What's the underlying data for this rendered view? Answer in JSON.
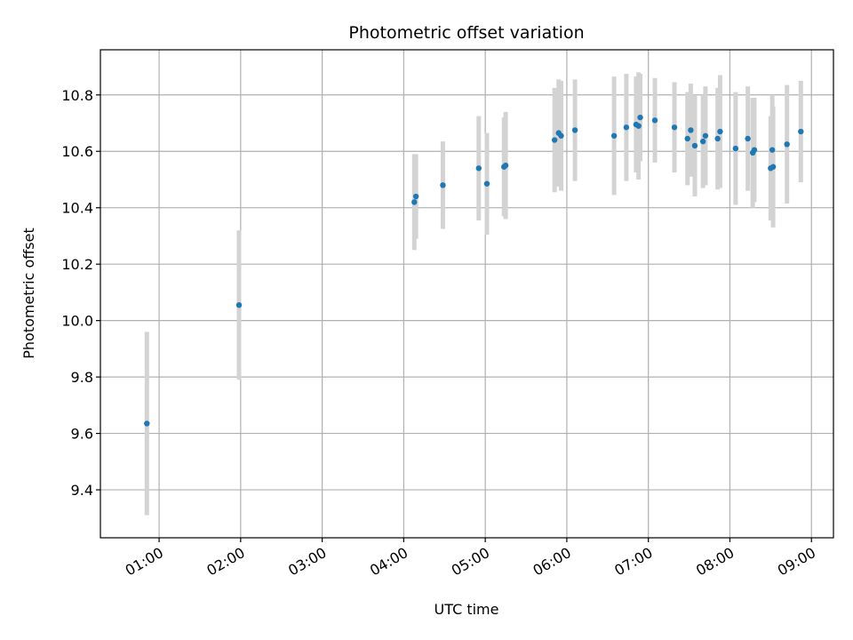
{
  "chart_data": {
    "type": "scatter",
    "title": "Photometric offset variation",
    "xlabel": "UTC time",
    "ylabel": "Photometric offset",
    "x_unit": "hours UTC",
    "xlim": [
      0.28,
      9.27
    ],
    "ylim": [
      9.23,
      10.96
    ],
    "grid": true,
    "x_ticks": [
      {
        "value": 1,
        "label": "01:00"
      },
      {
        "value": 2,
        "label": "02:00"
      },
      {
        "value": 3,
        "label": "03:00"
      },
      {
        "value": 4,
        "label": "04:00"
      },
      {
        "value": 5,
        "label": "05:00"
      },
      {
        "value": 6,
        "label": "06:00"
      },
      {
        "value": 7,
        "label": "07:00"
      },
      {
        "value": 8,
        "label": "08:00"
      },
      {
        "value": 9,
        "label": "09:00"
      }
    ],
    "y_ticks": [
      {
        "value": 9.4,
        "label": "9.4"
      },
      {
        "value": 9.6,
        "label": "9.6"
      },
      {
        "value": 9.8,
        "label": "9.8"
      },
      {
        "value": 10.0,
        "label": "10.0"
      },
      {
        "value": 10.2,
        "label": "10.2"
      },
      {
        "value": 10.4,
        "label": "10.4"
      },
      {
        "value": 10.6,
        "label": "10.6"
      },
      {
        "value": 10.8,
        "label": "10.8"
      }
    ],
    "colors": {
      "points": "#1f77b4",
      "errorbars": "#d3d3d3",
      "grid": "#b0b0b0"
    },
    "points": [
      {
        "x": 0.85,
        "y": 9.635,
        "err": 0.325
      },
      {
        "x": 1.98,
        "y": 10.055,
        "err": 0.265
      },
      {
        "x": 4.13,
        "y": 10.42,
        "err": 0.17
      },
      {
        "x": 4.15,
        "y": 10.44,
        "err": 0.15
      },
      {
        "x": 4.48,
        "y": 10.48,
        "err": 0.155
      },
      {
        "x": 4.92,
        "y": 10.54,
        "err": 0.185
      },
      {
        "x": 5.02,
        "y": 10.485,
        "err": 0.18
      },
      {
        "x": 5.23,
        "y": 10.545,
        "err": 0.175
      },
      {
        "x": 5.25,
        "y": 10.55,
        "err": 0.19
      },
      {
        "x": 5.85,
        "y": 10.64,
        "err": 0.185
      },
      {
        "x": 5.9,
        "y": 10.665,
        "err": 0.19
      },
      {
        "x": 5.93,
        "y": 10.655,
        "err": 0.195
      },
      {
        "x": 6.1,
        "y": 10.675,
        "err": 0.18
      },
      {
        "x": 6.58,
        "y": 10.655,
        "err": 0.21
      },
      {
        "x": 6.73,
        "y": 10.685,
        "err": 0.19
      },
      {
        "x": 6.85,
        "y": 10.695,
        "err": 0.17
      },
      {
        "x": 6.88,
        "y": 10.69,
        "err": 0.19
      },
      {
        "x": 6.9,
        "y": 10.72,
        "err": 0.155
      },
      {
        "x": 7.08,
        "y": 10.71,
        "err": 0.15
      },
      {
        "x": 7.32,
        "y": 10.685,
        "err": 0.16
      },
      {
        "x": 7.48,
        "y": 10.645,
        "err": 0.165
      },
      {
        "x": 7.52,
        "y": 10.675,
        "err": 0.165
      },
      {
        "x": 7.57,
        "y": 10.62,
        "err": 0.18
      },
      {
        "x": 7.67,
        "y": 10.635,
        "err": 0.165
      },
      {
        "x": 7.7,
        "y": 10.655,
        "err": 0.175
      },
      {
        "x": 7.85,
        "y": 10.645,
        "err": 0.18
      },
      {
        "x": 7.88,
        "y": 10.67,
        "err": 0.2
      },
      {
        "x": 8.07,
        "y": 10.61,
        "err": 0.2
      },
      {
        "x": 8.22,
        "y": 10.645,
        "err": 0.185
      },
      {
        "x": 8.28,
        "y": 10.595,
        "err": 0.195
      },
      {
        "x": 8.3,
        "y": 10.605,
        "err": 0.185
      },
      {
        "x": 8.5,
        "y": 10.54,
        "err": 0.185
      },
      {
        "x": 8.52,
        "y": 10.605,
        "err": 0.195
      },
      {
        "x": 8.53,
        "y": 10.545,
        "err": 0.215
      },
      {
        "x": 8.7,
        "y": 10.625,
        "err": 0.21
      },
      {
        "x": 8.87,
        "y": 10.67,
        "err": 0.18
      }
    ]
  }
}
